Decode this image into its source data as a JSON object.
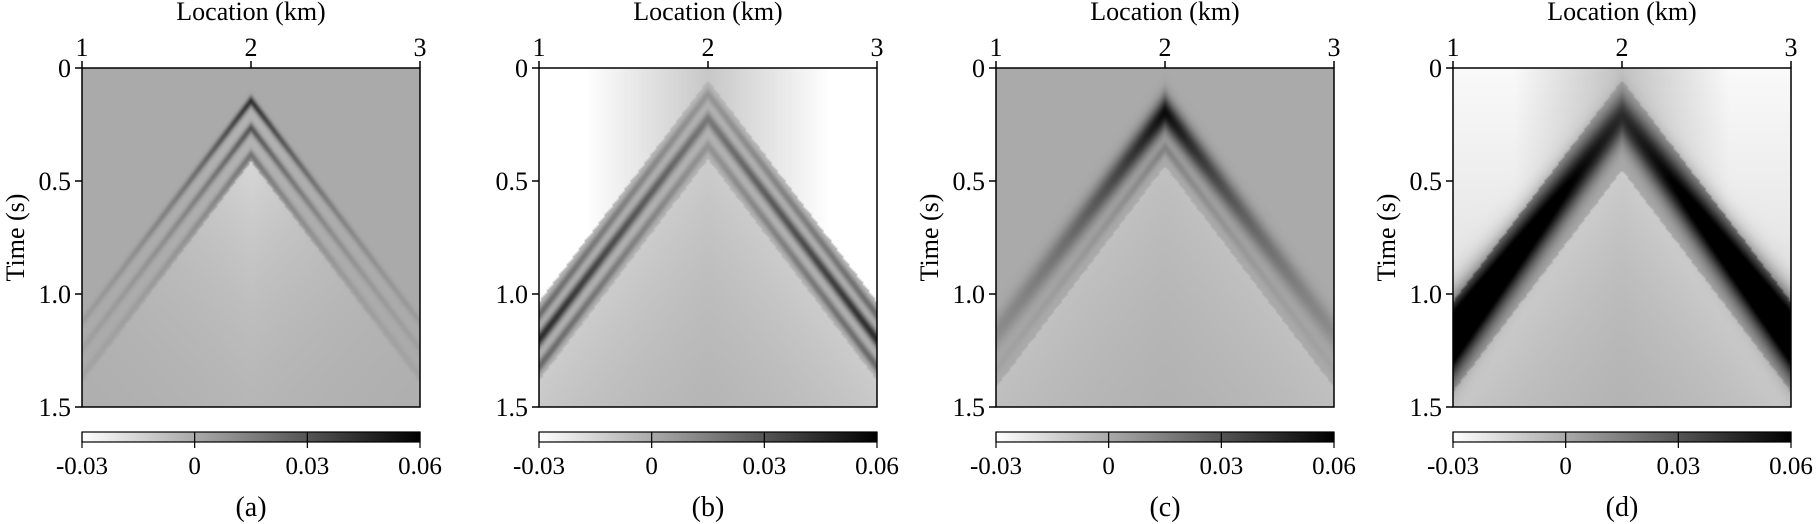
{
  "chart_data": [
    {
      "type": "heatmap",
      "panel_label": "(a)",
      "xlabel": "Location (km)",
      "ylabel": "Time (s)",
      "xlim": [
        1,
        3
      ],
      "ylim": [
        0,
        1.5
      ],
      "x_ticks": [
        "1",
        "2",
        "3"
      ],
      "y_ticks": [
        "0",
        "0.5",
        "1.0",
        "1.5"
      ],
      "colorbar": {
        "range": [
          -0.03,
          0.06
        ],
        "ticks": [
          "-0.03",
          "0",
          "0.03",
          "0.06"
        ],
        "colormap": "grayscale (white = -0.03, black = 0.06)"
      },
      "source_location_km": 2.0,
      "wavefront_apex_time_s": 0.05,
      "description_of_field": "Thin multi-cycle hyperbolic wavefront; amplitude decays strongly with time; near-zero background"
    },
    {
      "type": "heatmap",
      "panel_label": "(b)",
      "xlabel": "Location (km)",
      "ylabel": "",
      "xlim": [
        1,
        3
      ],
      "ylim": [
        0,
        1.5
      ],
      "x_ticks": [
        "1",
        "2",
        "3"
      ],
      "y_ticks": [
        "0",
        "0.5",
        "1.0",
        "1.5"
      ],
      "colorbar": {
        "range": [
          -0.03,
          0.06
        ],
        "ticks": [
          "-0.03",
          "0",
          "0.03",
          "0.06"
        ],
        "colormap": "grayscale (white = -0.03, black = 0.06)"
      },
      "source_location_km": 2.0,
      "wavefront_apex_time_s": 0.05,
      "description_of_field": "Multi-cycle wavefront with amplitude increasing with time; negative (light) background outside the cone"
    },
    {
      "type": "heatmap",
      "panel_label": "(c)",
      "xlabel": "Location (km)",
      "ylabel": "Time (s)",
      "xlim": [
        1,
        3
      ],
      "ylim": [
        0,
        1.5
      ],
      "x_ticks": [
        "1",
        "2",
        "3"
      ],
      "y_ticks": [
        "0",
        "0.5",
        "1.0",
        "1.5"
      ],
      "colorbar": {
        "range": [
          -0.03,
          0.06
        ],
        "ticks": [
          "-0.03",
          "0",
          "0.03",
          "0.06"
        ],
        "colormap": "grayscale (white = -0.03, black = 0.06)"
      },
      "source_location_km": 2.0,
      "wavefront_apex_time_s": 0.05,
      "description_of_field": "Smooth broad wavefront strongest near apex, fading with time; near-zero background"
    },
    {
      "type": "heatmap",
      "panel_label": "(d)",
      "xlabel": "Location (km)",
      "ylabel": "Time (s)",
      "xlim": [
        1,
        3
      ],
      "ylim": [
        0,
        1.5
      ],
      "x_ticks": [
        "1",
        "2",
        "3"
      ],
      "y_ticks": [
        "0",
        "0.5",
        "1.0",
        "1.5"
      ],
      "colorbar": {
        "range": [
          -0.03,
          0.06
        ],
        "ticks": [
          "-0.03",
          "0",
          "0.03",
          "0.06"
        ],
        "colormap": "grayscale (white = -0.03, black = 0.06)"
      },
      "source_location_km": 2.0,
      "wavefront_apex_time_s": 0.05,
      "description_of_field": "Smooth broad wavefront with amplitude growing with time, very dark at large offsets; light negative background above"
    }
  ]
}
